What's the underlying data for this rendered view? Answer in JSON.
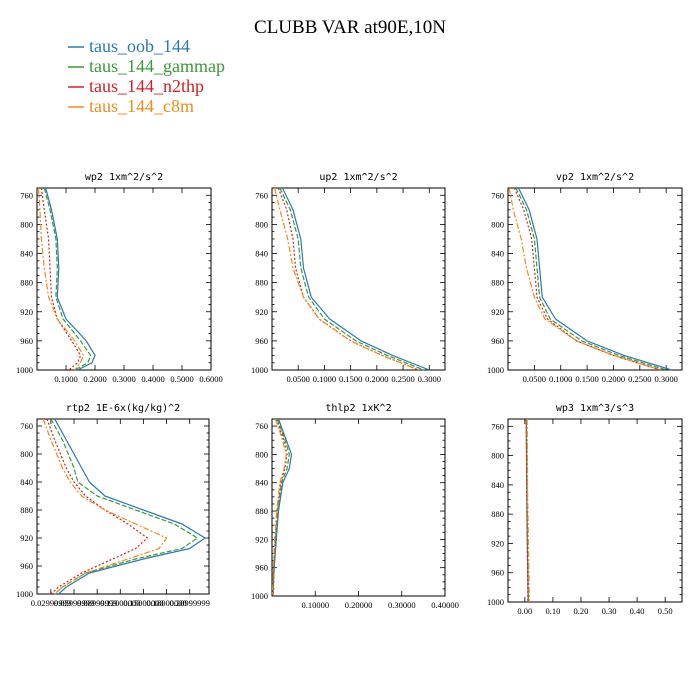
{
  "title": "CLUBB VAR at90E,10N",
  "legend": [
    {
      "label": "taus_oob_144",
      "color": "#2a7ab0",
      "dash": ""
    },
    {
      "label": "taus_144_gammap",
      "color": "#3a9a3a",
      "dash": "5,2"
    },
    {
      "label": "taus_144_n2thp",
      "color": "#d62020",
      "dash": "2,2"
    },
    {
      "label": "taus_144_c8m",
      "color": "#f08c1c",
      "dash": "6,2,2,2"
    }
  ],
  "chart_data": [
    {
      "type": "line",
      "title": "wp2  1xm^2/s^2",
      "ylim": [
        1000,
        750
      ],
      "xlim": [
        0,
        0.6
      ],
      "yticks": [
        760,
        800,
        840,
        880,
        920,
        960,
        1000
      ],
      "yticklabels": [
        "760",
        "800",
        "840",
        "880",
        "920",
        "960",
        "1000"
      ],
      "xticks": [
        0.1,
        0.2,
        0.3,
        0.4,
        0.5,
        0.6
      ],
      "xticklabels": [
        "0.1000",
        "0.2000",
        "0.3000",
        "0.4000",
        "0.5000",
        "0.6000"
      ],
      "y": [
        750,
        780,
        820,
        860,
        900,
        930,
        960,
        980,
        990,
        1000
      ],
      "series": [
        {
          "name": "taus_oob_144",
          "values": [
            0.03,
            0.05,
            0.07,
            0.075,
            0.07,
            0.1,
            0.17,
            0.2,
            0.19,
            0.14
          ]
        },
        {
          "name": "taus_144_gammap",
          "values": [
            0.025,
            0.045,
            0.065,
            0.07,
            0.065,
            0.09,
            0.15,
            0.185,
            0.175,
            0.13
          ]
        },
        {
          "name": "taus_144_n2thp",
          "values": [
            0.015,
            0.025,
            0.04,
            0.045,
            0.05,
            0.07,
            0.12,
            0.15,
            0.14,
            0.11
          ]
        },
        {
          "name": "taus_144_c8m",
          "values": [
            0.005,
            0.01,
            0.015,
            0.025,
            0.04,
            0.07,
            0.13,
            0.16,
            0.15,
            0.13
          ]
        }
      ]
    },
    {
      "type": "line",
      "title": "up2  1xm^2/s^2",
      "ylim": [
        1000,
        750
      ],
      "xlim": [
        0,
        0.33
      ],
      "yticks": [
        760,
        800,
        840,
        880,
        920,
        960,
        1000
      ],
      "yticklabels": [
        "760",
        "800",
        "840",
        "880",
        "920",
        "960",
        "1000"
      ],
      "xticks": [
        0.05,
        0.1,
        0.15,
        0.2,
        0.25,
        0.3
      ],
      "xticklabels": [
        "0.0500",
        "0.1000",
        "0.1500",
        "0.2000",
        "0.2500",
        "0.3000"
      ],
      "y": [
        750,
        780,
        820,
        860,
        900,
        930,
        960,
        980,
        1000
      ],
      "series": [
        {
          "name": "taus_oob_144",
          "values": [
            0.02,
            0.04,
            0.055,
            0.06,
            0.075,
            0.11,
            0.17,
            0.23,
            0.3
          ]
        },
        {
          "name": "taus_144_gammap",
          "values": [
            0.015,
            0.035,
            0.05,
            0.055,
            0.07,
            0.1,
            0.16,
            0.22,
            0.29
          ]
        },
        {
          "name": "taus_144_n2thp",
          "values": [
            0.012,
            0.028,
            0.04,
            0.045,
            0.06,
            0.09,
            0.15,
            0.21,
            0.28
          ]
        },
        {
          "name": "taus_144_c8m",
          "values": [
            0.005,
            0.015,
            0.03,
            0.04,
            0.06,
            0.09,
            0.15,
            0.21,
            0.28
          ]
        }
      ]
    },
    {
      "type": "line",
      "title": "vp2  1xm^2/s^2",
      "ylim": [
        1000,
        750
      ],
      "xlim": [
        0,
        0.33
      ],
      "yticks": [
        760,
        800,
        840,
        880,
        920,
        960,
        1000
      ],
      "yticklabels": [
        "760",
        "800",
        "840",
        "880",
        "920",
        "960",
        "1000"
      ],
      "xticks": [
        0.05,
        0.1,
        0.15,
        0.2,
        0.25,
        0.3
      ],
      "xticklabels": [
        "0.0500",
        "0.1000",
        "0.1500",
        "0.2000",
        "0.2500",
        "0.3000"
      ],
      "y": [
        750,
        780,
        820,
        860,
        900,
        930,
        960,
        980,
        1000
      ],
      "series": [
        {
          "name": "taus_oob_144",
          "values": [
            0.02,
            0.04,
            0.055,
            0.06,
            0.065,
            0.09,
            0.15,
            0.22,
            0.31
          ]
        },
        {
          "name": "taus_144_gammap",
          "values": [
            0.015,
            0.035,
            0.05,
            0.055,
            0.06,
            0.08,
            0.14,
            0.21,
            0.3
          ]
        },
        {
          "name": "taus_144_n2thp",
          "values": [
            0.012,
            0.03,
            0.045,
            0.05,
            0.055,
            0.075,
            0.13,
            0.2,
            0.29
          ]
        },
        {
          "name": "taus_144_c8m",
          "values": [
            0.002,
            0.01,
            0.025,
            0.035,
            0.05,
            0.07,
            0.13,
            0.2,
            0.29
          ]
        }
      ]
    },
    {
      "type": "line",
      "title": "rtp2  1E-6x(kg/kg)^2",
      "ylim": [
        1000,
        750
      ],
      "xlim": [
        0.012,
        0.235
      ],
      "yticks": [
        760,
        800,
        840,
        880,
        920,
        960,
        1000
      ],
      "yticklabels": [
        "760",
        "800",
        "840",
        "880",
        "920",
        "960",
        "1000"
      ],
      "xticks": [
        0.03,
        0.06,
        0.09,
        0.12,
        0.15,
        0.18,
        0.21
      ],
      "xticklabels": [
        "0.02999999",
        "0.05999999",
        "0.08999999",
        "0.12000000",
        "0.15000000",
        "0.18000000",
        "0.20999999"
      ],
      "y": [
        750,
        780,
        820,
        840,
        860,
        880,
        900,
        920,
        935,
        950,
        970,
        990,
        1000
      ],
      "series": [
        {
          "name": "taus_oob_144",
          "values": [
            0.035,
            0.05,
            0.07,
            0.08,
            0.1,
            0.15,
            0.2,
            0.23,
            0.21,
            0.15,
            0.08,
            0.05,
            0.04
          ]
        },
        {
          "name": "taus_144_gammap",
          "values": [
            0.03,
            0.045,
            0.06,
            0.065,
            0.09,
            0.14,
            0.19,
            0.22,
            0.2,
            0.14,
            0.075,
            0.045,
            0.035
          ]
        },
        {
          "name": "taus_144_n2thp",
          "values": [
            0.025,
            0.035,
            0.05,
            0.06,
            0.075,
            0.1,
            0.13,
            0.155,
            0.14,
            0.11,
            0.07,
            0.04,
            0.03
          ]
        },
        {
          "name": "taus_144_c8m",
          "values": [
            0.02,
            0.03,
            0.045,
            0.055,
            0.07,
            0.1,
            0.14,
            0.18,
            0.17,
            0.13,
            0.075,
            0.045,
            0.035
          ]
        }
      ]
    },
    {
      "type": "line",
      "title": "thlp2  1xK^2",
      "ylim": [
        1000,
        750
      ],
      "xlim": [
        0,
        0.4
      ],
      "yticks": [
        760,
        800,
        840,
        880,
        920,
        960,
        1000
      ],
      "yticklabels": [
        "760",
        "800",
        "840",
        "880",
        "920",
        "960",
        "1000"
      ],
      "xticks": [
        0.1,
        0.2,
        0.3,
        0.4
      ],
      "xticklabels": [
        "0.10000",
        "0.20000",
        "0.30000",
        "0.40000"
      ],
      "y": [
        750,
        775,
        800,
        820,
        840,
        880,
        920,
        960,
        1000
      ],
      "series": [
        {
          "name": "taus_oob_144",
          "values": [
            0.015,
            0.03,
            0.045,
            0.04,
            0.025,
            0.015,
            0.01,
            0.005,
            0.002
          ]
        },
        {
          "name": "taus_144_gammap",
          "values": [
            0.012,
            0.028,
            0.04,
            0.035,
            0.022,
            0.013,
            0.008,
            0.004,
            0.002
          ]
        },
        {
          "name": "taus_144_n2thp",
          "values": [
            0.01,
            0.025,
            0.035,
            0.03,
            0.02,
            0.012,
            0.007,
            0.004,
            0.002
          ]
        },
        {
          "name": "taus_144_c8m",
          "values": [
            0.008,
            0.022,
            0.033,
            0.028,
            0.018,
            0.011,
            0.006,
            0.003,
            0.001
          ]
        }
      ]
    },
    {
      "type": "line",
      "title": "wp3  1xm^3/s^3",
      "ylim": [
        1000,
        750
      ],
      "xlim": [
        -0.06,
        0.56
      ],
      "yticks": [
        760,
        800,
        840,
        880,
        920,
        960,
        1000
      ],
      "yticklabels": [
        "760",
        "800",
        "840",
        "880",
        "920",
        "960",
        "1000"
      ],
      "xticks": [
        0,
        0.1,
        0.2,
        0.3,
        0.4,
        0.5
      ],
      "xticklabels": [
        "0.00",
        "0.10",
        "0.20",
        "0.30",
        "0.40",
        "0.50"
      ],
      "y": [
        750,
        800,
        850,
        900,
        950,
        1000
      ],
      "series": [
        {
          "name": "taus_oob_144",
          "values": [
            0.005,
            0.006,
            0.007,
            0.008,
            0.01,
            0.012
          ]
        },
        {
          "name": "taus_144_gammap",
          "values": [
            0.006,
            0.007,
            0.008,
            0.009,
            0.011,
            0.013
          ]
        },
        {
          "name": "taus_144_n2thp",
          "values": [
            0.005,
            0.006,
            0.007,
            0.008,
            0.01,
            0.011
          ]
        },
        {
          "name": "taus_144_c8m",
          "values": [
            0.008,
            0.009,
            0.01,
            0.012,
            0.014,
            0.016
          ]
        }
      ]
    }
  ]
}
